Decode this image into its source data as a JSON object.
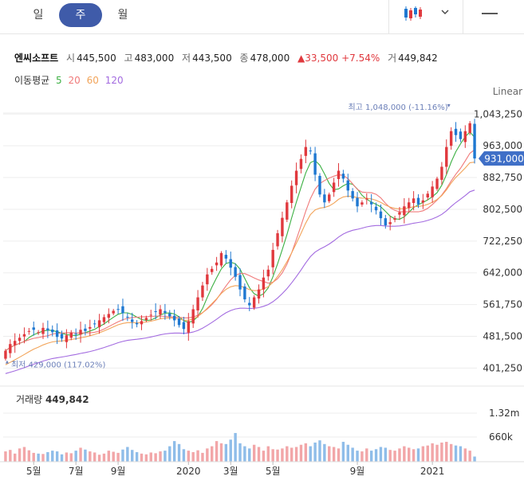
{
  "tabs": [
    {
      "label": "일",
      "active": false
    },
    {
      "label": "주",
      "active": true
    },
    {
      "label": "월",
      "active": false
    }
  ],
  "toolbar": {
    "chart_type_icon": "candlestick-icon",
    "dropdown_icon": "chevron-down-icon",
    "menu_icon": "minus-icon"
  },
  "stock": {
    "name": "엔씨소프트",
    "open_label": "시",
    "open": "445,500",
    "high_label": "고",
    "high": "483,000",
    "low_label": "저",
    "low": "443,500",
    "close_label": "종",
    "close": "478,000",
    "change": "33,500",
    "change_pct": "+7.54%",
    "volume_label": "거",
    "volume": "449,842"
  },
  "moving_average": {
    "label": "이동평균",
    "periods": [
      {
        "value": "5",
        "color": "#3cb043"
      },
      {
        "value": "20",
        "color": "#f07a7a"
      },
      {
        "value": "60",
        "color": "#f2a45a"
      },
      {
        "value": "120",
        "color": "#a36be0"
      }
    ]
  },
  "scale_label": "Linear",
  "volume_panel": {
    "label": "거래량",
    "value": "449,842",
    "ticks": [
      "1.32m",
      "660k"
    ]
  },
  "chart_data": {
    "type": "candlestick",
    "y_ticks": [
      "1,043,250",
      "963,000",
      "882,750",
      "802,500",
      "722,250",
      "642,000",
      "561,750",
      "481,500",
      "401,250"
    ],
    "y_tick_values": [
      1043250,
      963000,
      882750,
      802500,
      722250,
      642000,
      561750,
      481500,
      401250
    ],
    "ylim": [
      386000,
      1080000
    ],
    "x_labels": [
      "5월",
      "7월",
      "9월",
      "2020",
      "3월",
      "5월",
      "9월",
      "2021"
    ],
    "x_label_index": [
      6,
      15,
      24,
      39,
      48,
      57,
      75,
      91
    ],
    "current_price": "931,000",
    "current_value": 931000,
    "high_marker": {
      "label": "최고",
      "value": "1,048,000 (-11.16%)",
      "index": 95,
      "price": 1048000
    },
    "low_marker": {
      "label": "최저",
      "value": "429,000 (117.02%)",
      "index": 0,
      "price": 429000
    },
    "colors": {
      "up": "#e0393e",
      "down": "#1f78d1",
      "ma5": "#3cb043",
      "ma20": "#f07a7a",
      "ma60": "#f2a45a",
      "ma120": "#a36be0"
    },
    "closes": [
      445000,
      462000,
      470000,
      478000,
      487000,
      495000,
      498000,
      492000,
      503000,
      497000,
      492000,
      480000,
      476000,
      484000,
      491000,
      486000,
      498000,
      495000,
      505000,
      512000,
      522000,
      530000,
      538000,
      546000,
      550000,
      540000,
      530000,
      518000,
      512000,
      520000,
      528000,
      536000,
      544000,
      550000,
      541000,
      532000,
      522000,
      510000,
      500000,
      520000,
      550000,
      580000,
      610000,
      638000,
      652000,
      668000,
      692000,
      678000,
      655000,
      632000,
      600000,
      575000,
      560000,
      580000,
      600000,
      630000,
      650000,
      700000,
      742000,
      781000,
      820000,
      862000,
      900000,
      930000,
      960000,
      950000,
      890000,
      840000,
      820000,
      840000,
      870000,
      900000,
      880000,
      850000,
      830000,
      810000,
      820000,
      830000,
      815000,
      800000,
      780000,
      762000,
      770000,
      780000,
      795000,
      810000,
      820000,
      830000,
      815000,
      825000,
      842000,
      860000,
      880000,
      910000,
      960000,
      1000000,
      990000,
      980000,
      1000000,
      1020000,
      931000
    ],
    "volumes": [
      280,
      320,
      220,
      360,
      400,
      310,
      240,
      220,
      210,
      260,
      300,
      280,
      200,
      250,
      230,
      300,
      380,
      330,
      280,
      250,
      190,
      220,
      300,
      270,
      240,
      330,
      400,
      320,
      260,
      220,
      200,
      250,
      230,
      280,
      300,
      420,
      560,
      480,
      340,
      300,
      260,
      310,
      240,
      360,
      420,
      560,
      500,
      480,
      600,
      780,
      500,
      420,
      360,
      460,
      400,
      300,
      420,
      340,
      330,
      360,
      420,
      380,
      400,
      460,
      500,
      420,
      520,
      580,
      480,
      420,
      400,
      360,
      540,
      460,
      380,
      300,
      280,
      360,
      300,
      340,
      400,
      380,
      320,
      300,
      360,
      420,
      380,
      340,
      360,
      420,
      440,
      500,
      460,
      520,
      540,
      480,
      440,
      420,
      360,
      300,
      140
    ],
    "vol_max": 1320
  }
}
